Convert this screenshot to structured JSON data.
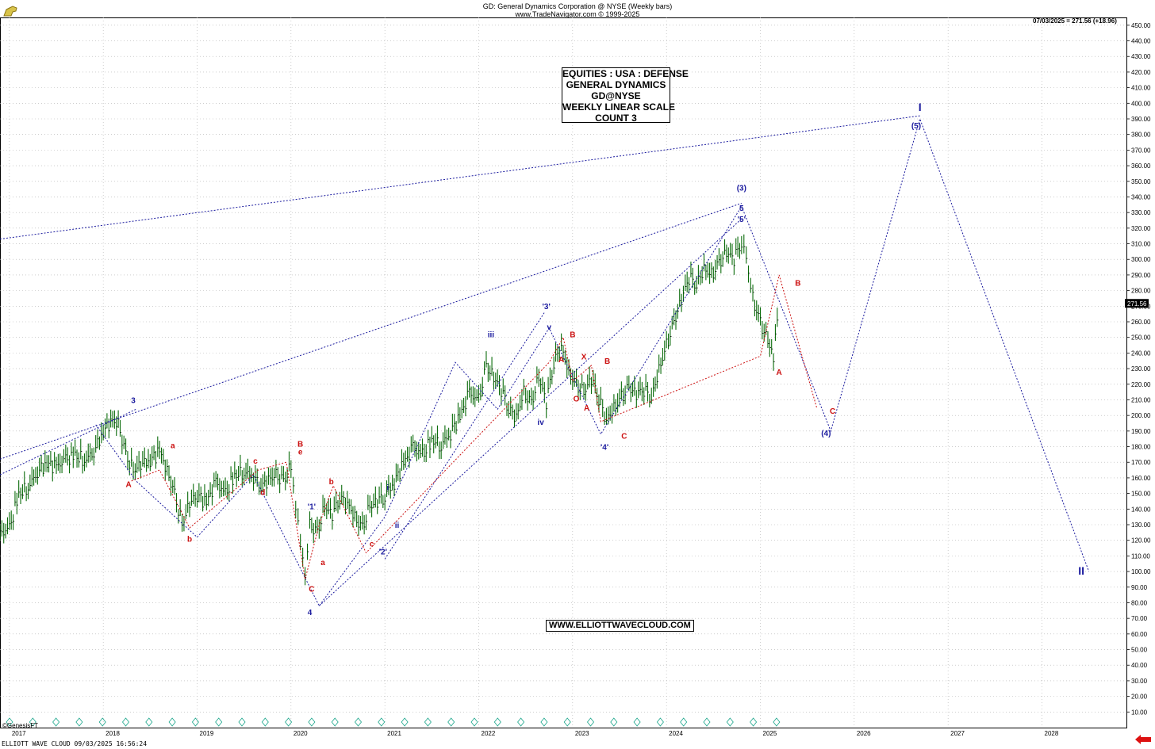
{
  "header": {
    "title": "GD:  General Dynamics Corporation @ NYSE  (Weekly bars)",
    "subtitle": "www.TradeNavigator.com © 1999-2025",
    "last_bar": "07/03/2025 = 271.56 (+18.96)"
  },
  "infobox": {
    "lines": [
      "EQUITIES : USA : DEFENSE",
      "GENERAL DYNAMICS",
      "GD@NYSE",
      "WEEKLY LINEAR SCALE",
      "COUNT 3"
    ]
  },
  "url": "WWW.ELLIOTTWAVECLOUD.COM",
  "footer": "ELLIOTT WAVE CLOUD   09/03/2025 16:56:24",
  "watermark": "©GenesisFT",
  "colors": {
    "blue": "#1a1a9e",
    "red": "#cc1111",
    "bars": "#0a6b0a",
    "grid": "#b0b0b0"
  },
  "chart_data": {
    "type": "line",
    "x_axis": {
      "labels": [
        "2017",
        "2018",
        "2019",
        "2020",
        "2021",
        "2022",
        "2023",
        "2024",
        "2025",
        "2026",
        "2027",
        "2028"
      ],
      "range": [
        2016.9,
        2028.9
      ]
    },
    "y_axis": {
      "range": [
        0,
        455
      ],
      "tick_step": 10,
      "side": "right"
    },
    "current_price": "271.56",
    "price_bars": [
      [
        2016.9,
        125
      ],
      [
        2017.0,
        128
      ],
      [
        2017.1,
        150
      ],
      [
        2017.2,
        155
      ],
      [
        2017.3,
        165
      ],
      [
        2017.4,
        170
      ],
      [
        2017.5,
        168
      ],
      [
        2017.6,
        172
      ],
      [
        2017.7,
        175
      ],
      [
        2017.8,
        172
      ],
      [
        2017.9,
        178
      ],
      [
        2018.0,
        190
      ],
      [
        2018.08,
        198
      ],
      [
        2018.16,
        195
      ],
      [
        2018.24,
        175
      ],
      [
        2018.32,
        165
      ],
      [
        2018.4,
        170
      ],
      [
        2018.5,
        172
      ],
      [
        2018.6,
        178
      ],
      [
        2018.68,
        165
      ],
      [
        2018.76,
        150
      ],
      [
        2018.84,
        130
      ],
      [
        2018.92,
        145
      ],
      [
        2019.0,
        150
      ],
      [
        2019.1,
        145
      ],
      [
        2019.2,
        158
      ],
      [
        2019.3,
        150
      ],
      [
        2019.4,
        162
      ],
      [
        2019.5,
        165
      ],
      [
        2019.6,
        162
      ],
      [
        2019.68,
        155
      ],
      [
        2019.76,
        160
      ],
      [
        2019.84,
        162
      ],
      [
        2019.92,
        158
      ],
      [
        2020.0,
        168
      ],
      [
        2020.05,
        145
      ],
      [
        2020.1,
        120
      ],
      [
        2020.15,
        96
      ],
      [
        2020.2,
        130
      ],
      [
        2020.28,
        125
      ],
      [
        2020.36,
        142
      ],
      [
        2020.44,
        138
      ],
      [
        2020.52,
        148
      ],
      [
        2020.6,
        145
      ],
      [
        2020.68,
        135
      ],
      [
        2020.76,
        128
      ],
      [
        2020.84,
        142
      ],
      [
        2021.0,
        150
      ],
      [
        2021.1,
        158
      ],
      [
        2021.2,
        170
      ],
      [
        2021.3,
        180
      ],
      [
        2021.4,
        175
      ],
      [
        2021.5,
        185
      ],
      [
        2021.6,
        182
      ],
      [
        2021.7,
        190
      ],
      [
        2021.8,
        200
      ],
      [
        2021.9,
        215
      ],
      [
        2022.0,
        210
      ],
      [
        2022.08,
        232
      ],
      [
        2022.16,
        225
      ],
      [
        2022.24,
        218
      ],
      [
        2022.32,
        205
      ],
      [
        2022.4,
        200
      ],
      [
        2022.48,
        215
      ],
      [
        2022.56,
        208
      ],
      [
        2022.64,
        225
      ],
      [
        2022.72,
        210
      ],
      [
        2022.8,
        235
      ],
      [
        2022.88,
        245
      ],
      [
        2022.96,
        228
      ],
      [
        2023.04,
        220
      ],
      [
        2023.12,
        215
      ],
      [
        2023.2,
        225
      ],
      [
        2023.28,
        212
      ],
      [
        2023.36,
        198
      ],
      [
        2023.44,
        205
      ],
      [
        2023.52,
        212
      ],
      [
        2023.6,
        218
      ],
      [
        2023.68,
        215
      ],
      [
        2023.76,
        218
      ],
      [
        2023.84,
        212
      ],
      [
        2023.92,
        230
      ],
      [
        2024.0,
        245
      ],
      [
        2024.08,
        260
      ],
      [
        2024.16,
        275
      ],
      [
        2024.24,
        290
      ],
      [
        2024.32,
        285
      ],
      [
        2024.4,
        295
      ],
      [
        2024.48,
        290
      ],
      [
        2024.56,
        298
      ],
      [
        2024.64,
        305
      ],
      [
        2024.72,
        302
      ],
      [
        2024.8,
        312
      ],
      [
        2024.85,
        300
      ],
      [
        2024.92,
        275
      ],
      [
        2025.0,
        260
      ],
      [
        2025.08,
        248
      ],
      [
        2025.14,
        240
      ],
      [
        2025.2,
        272
      ]
    ],
    "blue_path_1": [
      [
        2017.92,
        194
      ],
      [
        2018.35,
        158
      ],
      [
        2019.0,
        122
      ],
      [
        2019.6,
        162
      ],
      [
        2020.3,
        78
      ],
      [
        2021.0,
        135
      ],
      [
        2021.75,
        234
      ],
      [
        2022.2,
        204
      ],
      [
        2022.75,
        256
      ],
      [
        2023.3,
        188
      ],
      [
        2024.8,
        334
      ],
      [
        2025.75,
        190
      ],
      [
        2026.7,
        390
      ],
      [
        2028.5,
        100
      ]
    ],
    "blue_trend_lines": [
      {
        "from": [
          2016.9,
          162
        ],
        "to": [
          2018.35,
          204
        ]
      },
      {
        "from": [
          2016.9,
          172
        ],
        "to": [
          2024.8,
          336
        ]
      },
      {
        "from": [
          2016.9,
          313
        ],
        "to": [
          2026.7,
          392
        ]
      },
      {
        "from": [
          2020.3,
          78
        ],
        "to": [
          2024.8,
          326
        ]
      },
      {
        "from": [
          2021.0,
          108
        ],
        "to": [
          2022.7,
          266
        ]
      }
    ],
    "red_path": [
      [
        2018.3,
        158
      ],
      [
        2018.6,
        165
      ],
      [
        2018.92,
        128
      ],
      [
        2019.65,
        165
      ],
      [
        2019.95,
        170
      ],
      [
        2020.15,
        95
      ],
      [
        2020.3,
        130
      ],
      [
        2020.45,
        155
      ],
      [
        2020.8,
        112
      ],
      [
        2022.75,
        234
      ],
      [
        2022.9,
        250
      ],
      [
        2023.0,
        222
      ],
      [
        2023.2,
        232
      ],
      [
        2023.3,
        196
      ],
      [
        2025.0,
        238
      ],
      [
        2025.2,
        290
      ],
      [
        2025.6,
        205
      ]
    ],
    "labels": [
      {
        "text": "3",
        "x": 2018.32,
        "y": 208,
        "color": "blue"
      },
      {
        "text": "4",
        "x": 2020.2,
        "y": 72,
        "color": "blue"
      },
      {
        "text": "'1'",
        "x": 2020.22,
        "y": 140,
        "color": "blue"
      },
      {
        "text": "'2'",
        "x": 2020.98,
        "y": 111,
        "color": "blue"
      },
      {
        "text": "i",
        "x": 2021.03,
        "y": 152,
        "color": "blue"
      },
      {
        "text": "ii",
        "x": 2021.13,
        "y": 128,
        "color": "blue"
      },
      {
        "text": "iii",
        "x": 2022.13,
        "y": 250,
        "color": "blue"
      },
      {
        "text": "iv",
        "x": 2022.66,
        "y": 194,
        "color": "blue"
      },
      {
        "text": "'3'",
        "x": 2022.72,
        "y": 268,
        "color": "blue"
      },
      {
        "text": "v",
        "x": 2022.75,
        "y": 255,
        "color": "blue"
      },
      {
        "text": "'4'",
        "x": 2023.34,
        "y": 178,
        "color": "blue"
      },
      {
        "text": "'5'",
        "x": 2024.8,
        "y": 324,
        "color": "blue"
      },
      {
        "text": "5",
        "x": 2024.8,
        "y": 331,
        "color": "blue"
      },
      {
        "text": "(3)",
        "x": 2024.8,
        "y": 344,
        "color": "blue"
      },
      {
        "text": "(4)",
        "x": 2025.7,
        "y": 187,
        "color": "blue"
      },
      {
        "text": "(5)",
        "x": 2026.66,
        "y": 384,
        "color": "blue"
      },
      {
        "text": "I",
        "x": 2026.7,
        "y": 395,
        "color": "blue"
      },
      {
        "text": "II",
        "x": 2028.42,
        "y": 98,
        "color": "blue"
      },
      {
        "text": "A",
        "x": 2018.27,
        "y": 154,
        "color": "red"
      },
      {
        "text": "a",
        "x": 2018.74,
        "y": 179,
        "color": "red"
      },
      {
        "text": "b",
        "x": 2018.92,
        "y": 119,
        "color": "red"
      },
      {
        "text": "c",
        "x": 2019.62,
        "y": 169,
        "color": "red"
      },
      {
        "text": "d",
        "x": 2019.7,
        "y": 149,
        "color": "red"
      },
      {
        "text": "B",
        "x": 2020.1,
        "y": 180,
        "color": "red"
      },
      {
        "text": "e",
        "x": 2020.1,
        "y": 175,
        "color": "red"
      },
      {
        "text": "C",
        "x": 2020.22,
        "y": 87,
        "color": "red"
      },
      {
        "text": "a",
        "x": 2020.34,
        "y": 104,
        "color": "red"
      },
      {
        "text": "b",
        "x": 2020.43,
        "y": 156,
        "color": "red"
      },
      {
        "text": "c",
        "x": 2020.86,
        "y": 116,
        "color": "red"
      },
      {
        "text": "A",
        "x": 2022.88,
        "y": 234,
        "color": "red"
      },
      {
        "text": "B",
        "x": 2023.0,
        "y": 250,
        "color": "red"
      },
      {
        "text": "O",
        "x": 2023.04,
        "y": 209,
        "color": "red"
      },
      {
        "text": "X",
        "x": 2023.12,
        "y": 236,
        "color": "red"
      },
      {
        "text": "A",
        "x": 2023.15,
        "y": 203,
        "color": "red"
      },
      {
        "text": "B",
        "x": 2023.37,
        "y": 233,
        "color": "red"
      },
      {
        "text": "C",
        "x": 2023.55,
        "y": 185,
        "color": "red"
      },
      {
        "text": "A",
        "x": 2025.2,
        "y": 226,
        "color": "red"
      },
      {
        "text": "B",
        "x": 2025.4,
        "y": 283,
        "color": "red"
      },
      {
        "text": "C",
        "x": 2025.77,
        "y": 201,
        "color": "red"
      }
    ]
  }
}
